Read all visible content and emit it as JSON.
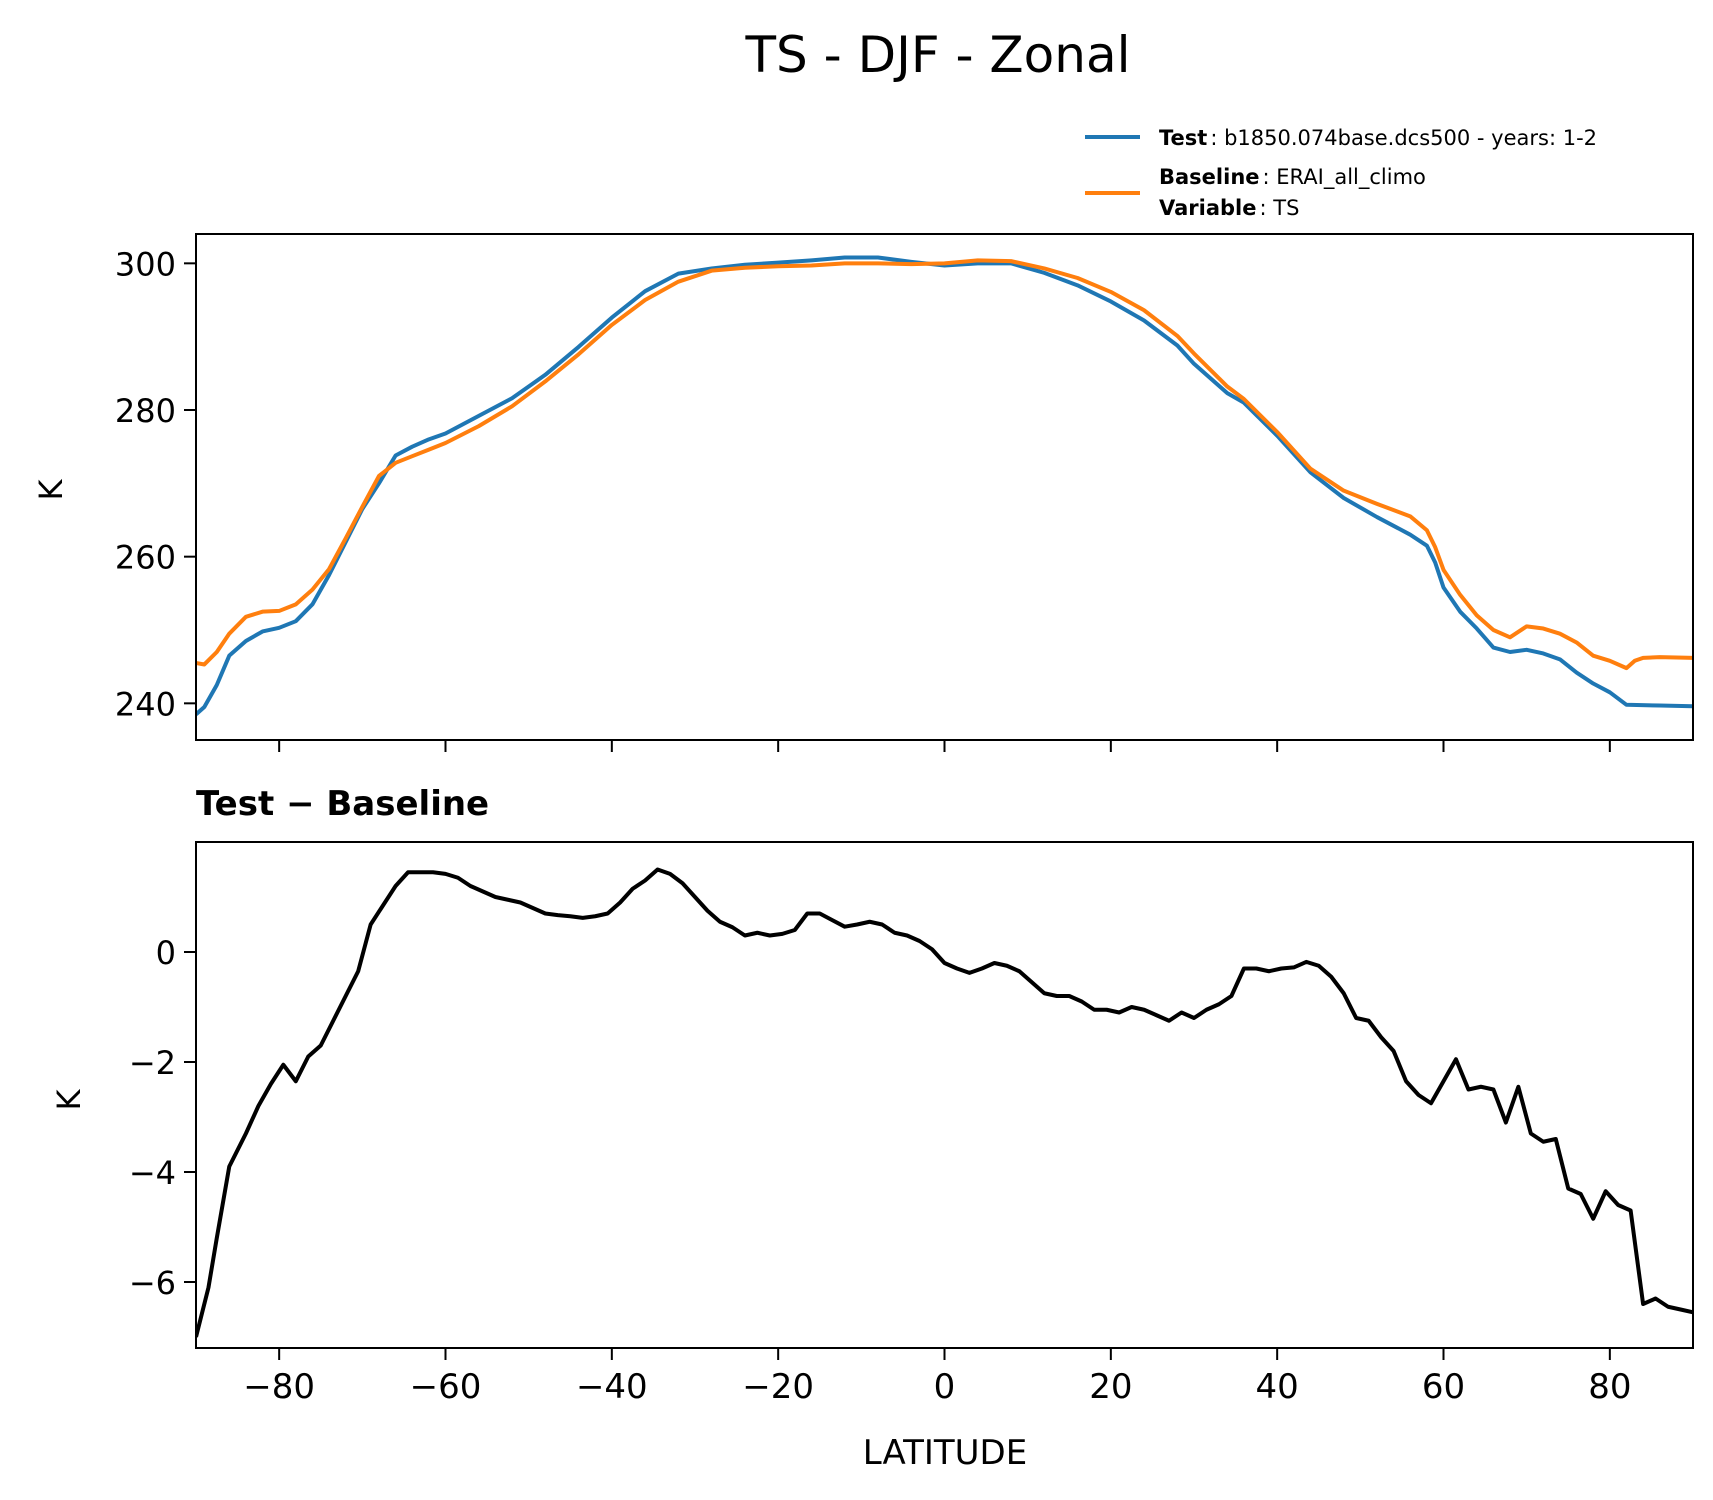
{
  "figure": {
    "title": "TS - DJF - Zonal"
  },
  "legend": {
    "test_key": "Test",
    "test_value": ": b1850.074base.dcs500 - years: 1-2",
    "baseline_key": "Baseline",
    "baseline_value": ": ERAI_all_climo",
    "variable_key": "Variable",
    "variable_value": ": TS"
  },
  "chart_data": [
    {
      "type": "line",
      "title": "",
      "xlabel": "",
      "ylabel": "K",
      "xlim": [
        -90,
        90
      ],
      "ylim": [
        235,
        304
      ],
      "xticks": [
        -80,
        -60,
        -40,
        -20,
        0,
        20,
        40,
        60,
        80
      ],
      "yticks": [
        240,
        260,
        280,
        300
      ],
      "ytick_labels": [
        "240",
        "260",
        "280",
        "300"
      ],
      "grid": false,
      "legend_position": "above-right",
      "series": [
        {
          "name": "Test",
          "color": "#1f77b4",
          "x": [
            -90,
            -89,
            -87.5,
            -86,
            -84,
            -82,
            -80,
            -78,
            -76,
            -74,
            -72,
            -70,
            -68,
            -66,
            -64,
            -62,
            -60,
            -56,
            -52,
            -48,
            -44,
            -40,
            -36,
            -32,
            -28,
            -24,
            -20,
            -16,
            -12,
            -8,
            -4,
            0,
            4,
            8,
            12,
            16,
            20,
            24,
            28,
            30,
            34,
            36,
            40,
            44,
            48,
            52,
            56,
            58,
            59,
            60,
            62,
            64,
            66,
            68,
            70,
            72,
            74,
            76,
            78,
            80,
            82,
            86,
            90
          ],
          "values": [
            238.5,
            239.5,
            242.5,
            246.5,
            248.5,
            249.8,
            250.3,
            251.2,
            253.5,
            257.5,
            262.0,
            266.5,
            270.0,
            273.8,
            275.0,
            276.0,
            276.8,
            279.2,
            281.6,
            284.8,
            288.6,
            292.6,
            296.2,
            298.6,
            299.3,
            299.8,
            300.1,
            300.4,
            300.8,
            300.8,
            300.2,
            299.7,
            300.0,
            300.0,
            298.7,
            297.0,
            294.8,
            292.2,
            288.8,
            286.3,
            282.3,
            281.0,
            276.5,
            271.5,
            268.0,
            265.4,
            263.0,
            261.5,
            259.2,
            255.8,
            252.5,
            250.2,
            247.6,
            247.0,
            247.3,
            246.8,
            246.0,
            244.2,
            242.7,
            241.5,
            239.8,
            239.7,
            239.6
          ]
        },
        {
          "name": "Baseline",
          "color": "#ff7f0e",
          "x": [
            -90,
            -89,
            -87.5,
            -86,
            -84,
            -82,
            -80,
            -78,
            -76,
            -74,
            -72,
            -70,
            -68,
            -66,
            -64,
            -62,
            -60,
            -56,
            -52,
            -48,
            -44,
            -40,
            -36,
            -32,
            -28,
            -24,
            -20,
            -16,
            -12,
            -8,
            -4,
            0,
            4,
            8,
            12,
            16,
            20,
            24,
            28,
            30,
            34,
            36,
            40,
            44,
            48,
            52,
            56,
            58,
            59,
            60,
            62,
            64,
            66,
            68,
            70,
            72,
            74,
            76,
            78,
            80,
            82,
            83,
            84,
            86,
            90
          ],
          "values": [
            245.5,
            245.3,
            247.0,
            249.5,
            251.8,
            252.5,
            252.6,
            253.5,
            255.5,
            258.3,
            262.5,
            266.8,
            271.0,
            272.8,
            273.7,
            274.6,
            275.5,
            277.8,
            280.5,
            283.9,
            287.6,
            291.6,
            295.0,
            297.5,
            299.0,
            299.4,
            299.6,
            299.7,
            300.0,
            300.0,
            299.9,
            300.0,
            300.4,
            300.3,
            299.3,
            298.0,
            296.1,
            293.6,
            290.1,
            287.7,
            283.2,
            281.5,
            277.0,
            272.0,
            269.0,
            267.2,
            265.5,
            263.6,
            261.3,
            258.2,
            254.8,
            252.0,
            250.0,
            249.0,
            250.5,
            250.2,
            249.5,
            248.3,
            246.5,
            245.8,
            244.8,
            245.8,
            246.2,
            246.3,
            246.2
          ]
        }
      ]
    },
    {
      "type": "line",
      "title": "Test − Baseline",
      "xlabel": "LATITUDE",
      "ylabel": "K",
      "xlim": [
        -90,
        90
      ],
      "ylim": [
        -7.2,
        2.0
      ],
      "xticks": [
        -80,
        -60,
        -40,
        -20,
        0,
        20,
        40,
        60,
        80
      ],
      "xtick_labels": [
        "−80",
        "−60",
        "−40",
        "−20",
        "0",
        "20",
        "40",
        "60",
        "80"
      ],
      "yticks": [
        -6,
        -4,
        -2,
        0
      ],
      "ytick_labels": [
        "−6",
        "−4",
        "−2",
        "0"
      ],
      "grid": false,
      "series": [
        {
          "name": "",
          "color": "#000000",
          "x": [
            -90,
            -88.5,
            -87.5,
            -86,
            -84,
            -82.5,
            -81,
            -79.5,
            -78,
            -76.5,
            -75,
            -73.5,
            -72,
            -70.5,
            -69,
            -67.5,
            -66,
            -64.5,
            -63,
            -61.5,
            -60,
            -58.5,
            -57,
            -55.5,
            -54,
            -52.5,
            -51,
            -49.5,
            -48,
            -46.5,
            -45,
            -43.5,
            -42,
            -40.5,
            -39,
            -37.5,
            -36,
            -34.5,
            -33,
            -31.5,
            -30,
            -28.5,
            -27,
            -25.5,
            -24,
            -22.5,
            -21,
            -19.5,
            -18,
            -16.5,
            -15,
            -13.5,
            -12,
            -10.5,
            -9,
            -7.5,
            -6,
            -4.5,
            -3,
            -1.5,
            0,
            1.5,
            3,
            4.5,
            6,
            7.5,
            9,
            10.5,
            12,
            13.5,
            15,
            16.5,
            18,
            19.5,
            21,
            22.5,
            24,
            25.5,
            27,
            28.5,
            30,
            31.5,
            33,
            34.5,
            36,
            37.5,
            39,
            40.5,
            42,
            43.5,
            45,
            46.5,
            48,
            49.5,
            51,
            52.5,
            54,
            55.5,
            57,
            58.5,
            60,
            61.5,
            63,
            64.5,
            66,
            67.5,
            69,
            70.5,
            72,
            73.5,
            75,
            76.5,
            78,
            79.5,
            81,
            82.5,
            84,
            85.5,
            87,
            88.5,
            90
          ],
          "values": [
            -7.0,
            -6.1,
            -5.2,
            -3.9,
            -3.3,
            -2.8,
            -2.4,
            -2.05,
            -2.35,
            -1.9,
            -1.7,
            -1.25,
            -0.8,
            -0.35,
            0.5,
            0.85,
            1.2,
            1.45,
            1.45,
            1.45,
            1.42,
            1.35,
            1.2,
            1.1,
            1.0,
            0.95,
            0.9,
            0.8,
            0.7,
            0.67,
            0.65,
            0.62,
            0.65,
            0.7,
            0.9,
            1.15,
            1.3,
            1.5,
            1.42,
            1.25,
            1.0,
            0.75,
            0.55,
            0.45,
            0.3,
            0.35,
            0.3,
            0.33,
            0.4,
            0.7,
            0.7,
            0.58,
            0.46,
            0.5,
            0.55,
            0.5,
            0.35,
            0.3,
            0.2,
            0.05,
            -0.2,
            -0.3,
            -0.38,
            -0.3,
            -0.2,
            -0.25,
            -0.35,
            -0.55,
            -0.75,
            -0.8,
            -0.8,
            -0.9,
            -1.05,
            -1.05,
            -1.1,
            -1.0,
            -1.05,
            -1.15,
            -1.25,
            -1.1,
            -1.2,
            -1.05,
            -0.95,
            -0.8,
            -0.3,
            -0.3,
            -0.35,
            -0.3,
            -0.28,
            -0.18,
            -0.25,
            -0.45,
            -0.75,
            -1.2,
            -1.25,
            -1.55,
            -1.8,
            -2.35,
            -2.6,
            -2.75,
            -2.35,
            -1.95,
            -2.5,
            -2.45,
            -2.5,
            -3.1,
            -2.45,
            -3.3,
            -3.45,
            -3.4,
            -4.3,
            -4.4,
            -4.85,
            -4.35,
            -4.6,
            -4.7,
            -6.4,
            -6.3,
            -6.45,
            -6.5,
            -6.55
          ]
        }
      ]
    }
  ]
}
